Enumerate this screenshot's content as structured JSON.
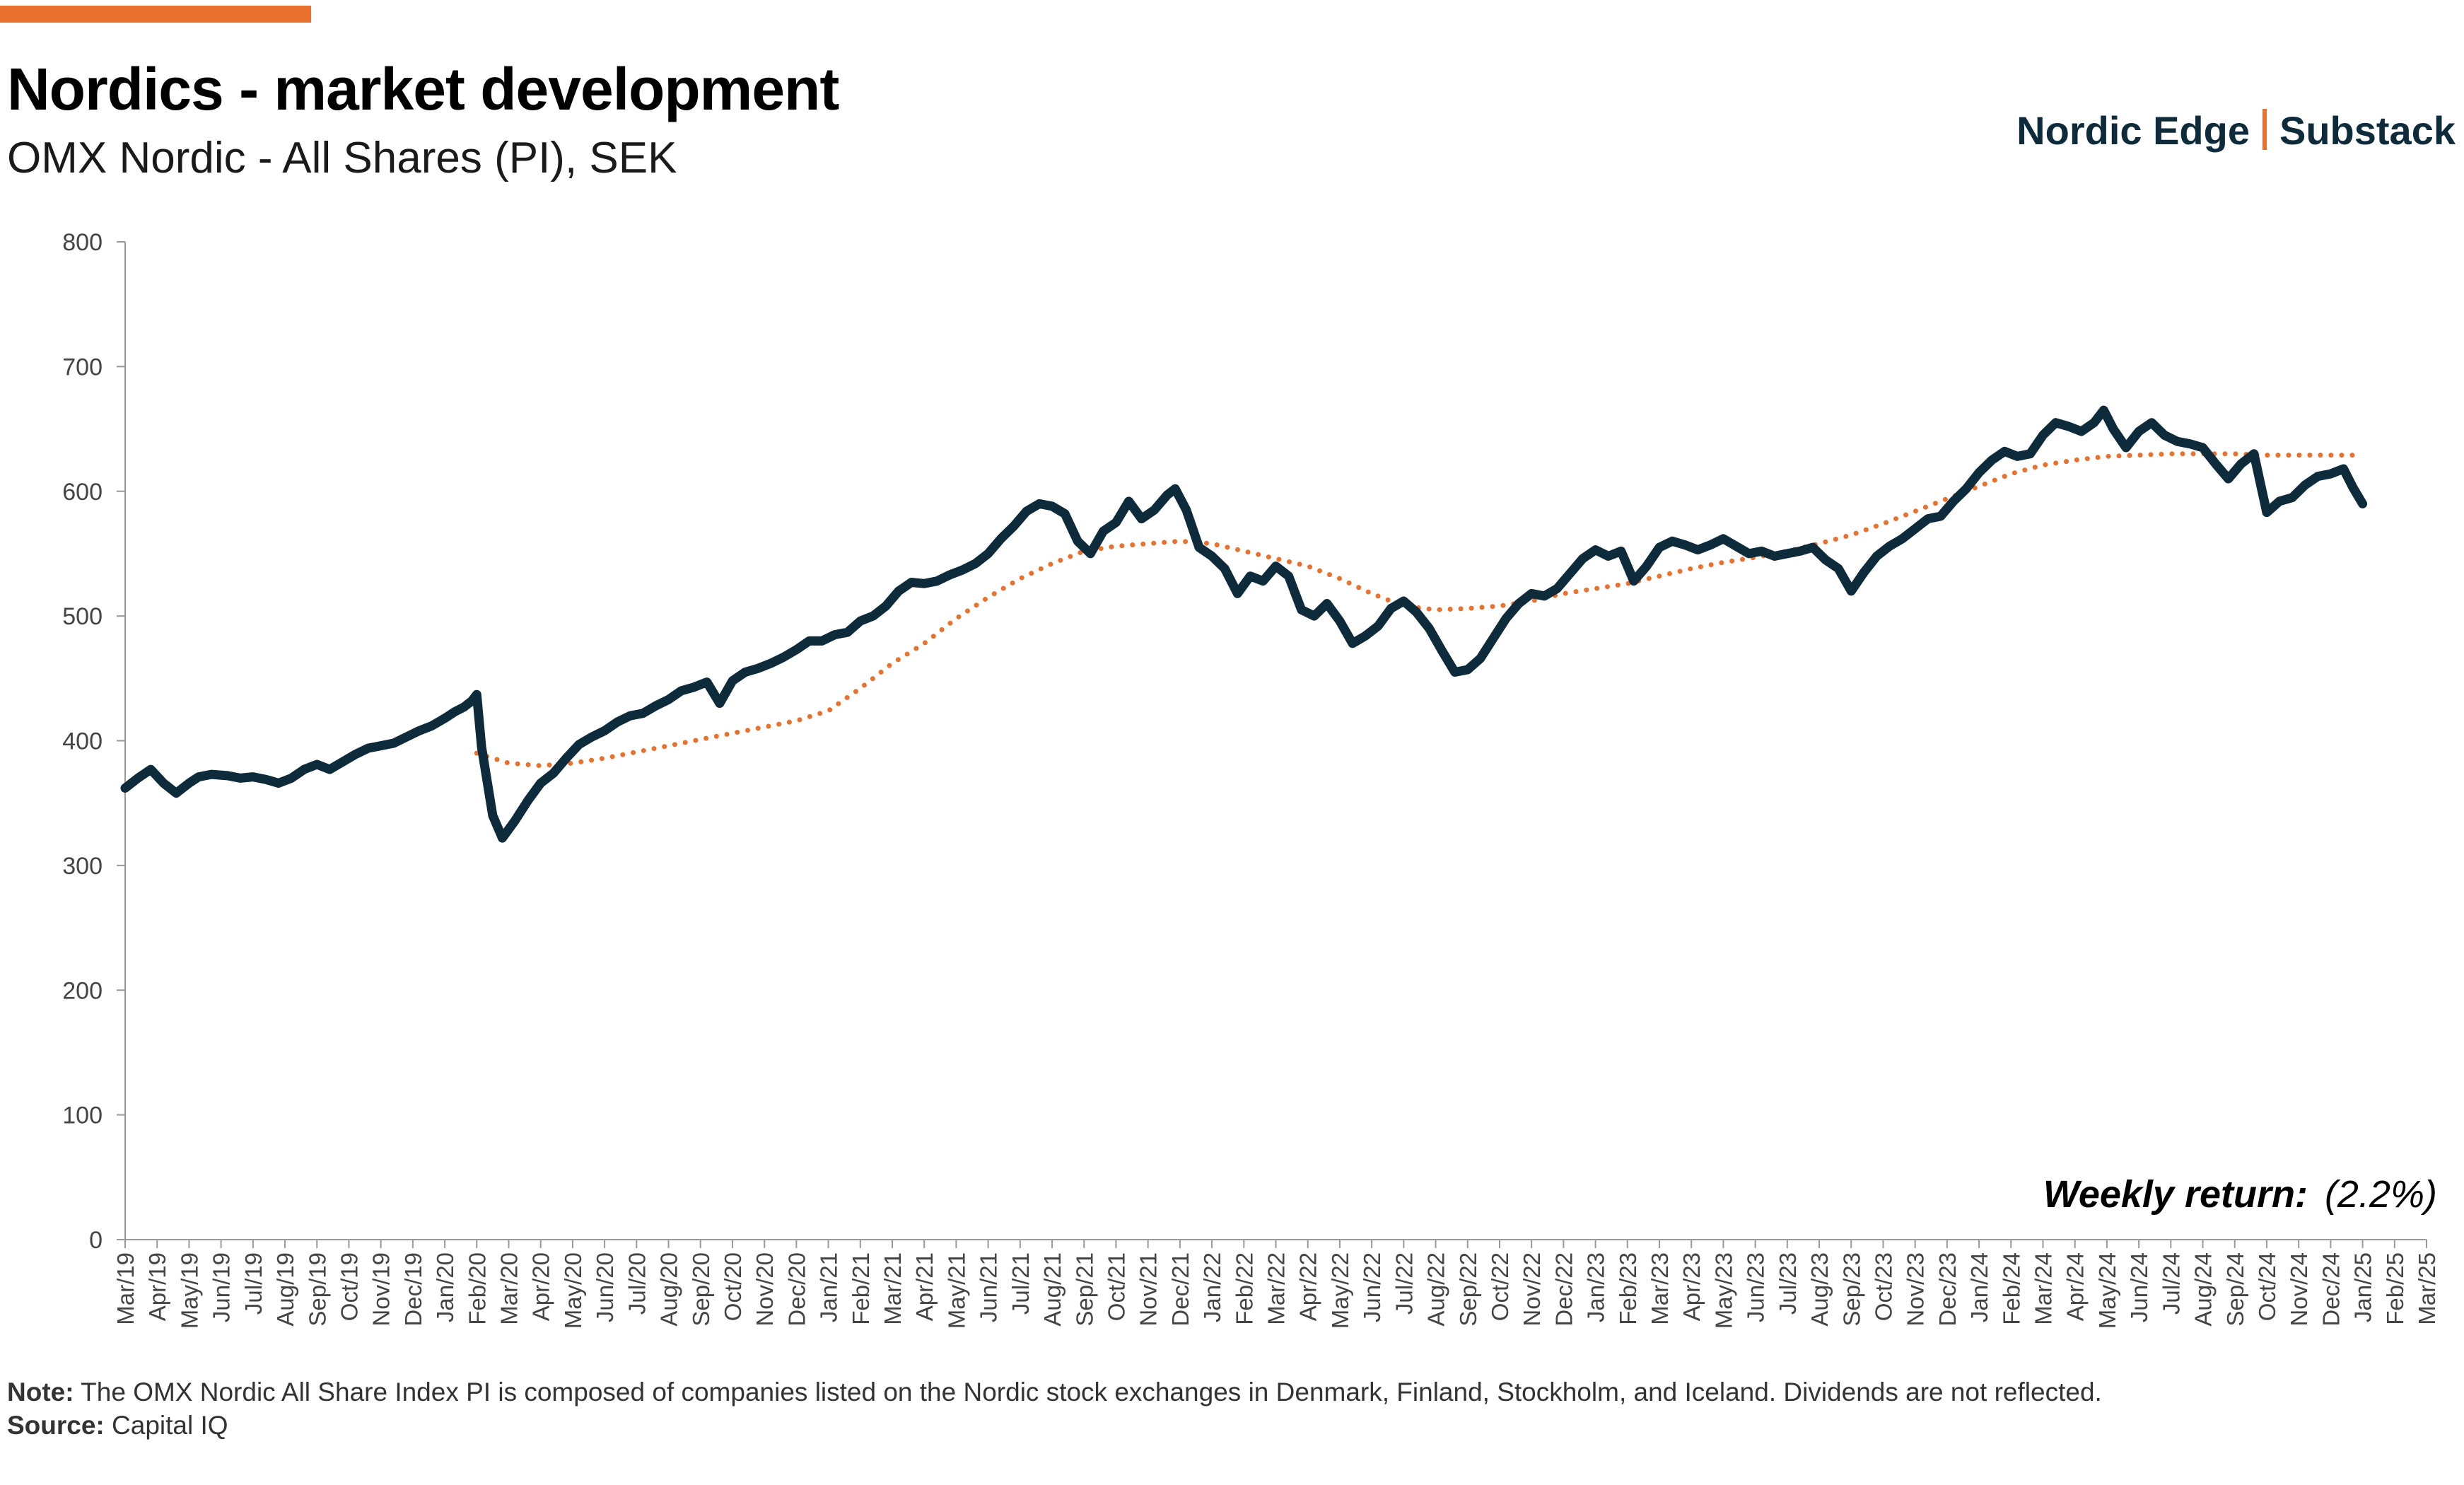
{
  "header": {
    "title": "Nordics - market development",
    "subtitle": "OMX Nordic - All Shares (PI), SEK",
    "brand_left": "Nordic Edge",
    "brand_right": "Substack"
  },
  "weekly_return": {
    "label": "Weekly return:",
    "value": "(2.2%)"
  },
  "footer": {
    "note_label": "Note:",
    "note_text": " The OMX Nordic All Share Index PI is composed of companies listed on the Nordic stock exchanges in Denmark, Finland, Stockholm, and Iceland. Dividends are not reflected.",
    "source_label": "Source:",
    "source_text": " Capital IQ"
  },
  "colors": {
    "accent": "#E8712D",
    "line": "#0E2B3C",
    "axis": "#999999",
    "tick_text": "#444444"
  },
  "chart_data": {
    "type": "line",
    "title": "Nordics - market development",
    "subtitle": "OMX Nordic - All Shares (PI), SEK",
    "ylim": [
      0,
      800
    ],
    "yticks": [
      0,
      100,
      200,
      300,
      400,
      500,
      600,
      700,
      800
    ],
    "grid": false,
    "x_tick_labels": [
      "Mar/19",
      "Apr/19",
      "May/19",
      "Jun/19",
      "Jul/19",
      "Aug/19",
      "Sep/19",
      "Oct/19",
      "Nov/19",
      "Dec/19",
      "Jan/20",
      "Feb/20",
      "Mar/20",
      "Apr/20",
      "May/20",
      "Jun/20",
      "Jul/20",
      "Aug/20",
      "Sep/20",
      "Oct/20",
      "Nov/20",
      "Dec/20",
      "Jan/21",
      "Feb/21",
      "Mar/21",
      "Apr/21",
      "May/21",
      "Jun/21",
      "Jul/21",
      "Aug/21",
      "Sep/21",
      "Oct/21",
      "Nov/21",
      "Dec/21",
      "Jan/22",
      "Feb/22",
      "Mar/22",
      "Apr/22",
      "May/22",
      "Jun/22",
      "Jul/22",
      "Aug/22",
      "Sep/22",
      "Oct/22",
      "Nov/22",
      "Dec/22",
      "Jan/23",
      "Feb/23",
      "Mar/23",
      "Apr/23",
      "May/23",
      "Jun/23",
      "Jul/23",
      "Aug/23",
      "Sep/23",
      "Oct/23",
      "Nov/23",
      "Dec/23",
      "Jan/24",
      "Feb/24",
      "Mar/24",
      "Apr/24",
      "May/24",
      "Jun/24",
      "Jul/24",
      "Aug/24",
      "Sep/24",
      "Oct/24",
      "Nov/24",
      "Dec/24",
      "Jan/25",
      "Feb/25",
      "Mar/25"
    ],
    "series": [
      {
        "style": "solid",
        "points": [
          [
            0,
            362
          ],
          [
            0.4,
            370
          ],
          [
            0.8,
            377
          ],
          [
            1.2,
            366
          ],
          [
            1.6,
            358
          ],
          [
            2.0,
            366
          ],
          [
            2.3,
            371
          ],
          [
            2.7,
            373
          ],
          [
            3.2,
            372
          ],
          [
            3.6,
            370
          ],
          [
            4.0,
            371
          ],
          [
            4.4,
            369
          ],
          [
            4.8,
            366
          ],
          [
            5.2,
            370
          ],
          [
            5.6,
            377
          ],
          [
            6.0,
            381
          ],
          [
            6.4,
            377
          ],
          [
            6.8,
            383
          ],
          [
            7.2,
            389
          ],
          [
            7.6,
            394
          ],
          [
            8.0,
            396
          ],
          [
            8.4,
            398
          ],
          [
            8.8,
            403
          ],
          [
            9.2,
            408
          ],
          [
            9.6,
            412
          ],
          [
            10.0,
            418
          ],
          [
            10.3,
            423
          ],
          [
            10.6,
            427
          ],
          [
            10.85,
            432
          ],
          [
            11.0,
            437
          ],
          [
            11.15,
            395
          ],
          [
            11.5,
            340
          ],
          [
            11.8,
            322
          ],
          [
            12.2,
            336
          ],
          [
            12.6,
            352
          ],
          [
            13.0,
            366
          ],
          [
            13.4,
            374
          ],
          [
            13.8,
            386
          ],
          [
            14.2,
            397
          ],
          [
            14.6,
            403
          ],
          [
            15.0,
            408
          ],
          [
            15.4,
            415
          ],
          [
            15.8,
            420
          ],
          [
            16.2,
            422
          ],
          [
            16.6,
            428
          ],
          [
            17.0,
            433
          ],
          [
            17.4,
            440
          ],
          [
            17.8,
            443
          ],
          [
            18.2,
            447
          ],
          [
            18.6,
            430
          ],
          [
            19.0,
            448
          ],
          [
            19.4,
            455
          ],
          [
            19.8,
            458
          ],
          [
            20.2,
            462
          ],
          [
            20.6,
            467
          ],
          [
            21.0,
            473
          ],
          [
            21.4,
            480
          ],
          [
            21.8,
            480
          ],
          [
            22.2,
            485
          ],
          [
            22.6,
            487
          ],
          [
            23.0,
            496
          ],
          [
            23.4,
            500
          ],
          [
            23.8,
            508
          ],
          [
            24.2,
            520
          ],
          [
            24.6,
            527
          ],
          [
            25.0,
            526
          ],
          [
            25.4,
            528
          ],
          [
            25.8,
            533
          ],
          [
            26.2,
            537
          ],
          [
            26.6,
            542
          ],
          [
            27.0,
            550
          ],
          [
            27.4,
            562
          ],
          [
            27.8,
            572
          ],
          [
            28.2,
            584
          ],
          [
            28.6,
            590
          ],
          [
            29.0,
            588
          ],
          [
            29.4,
            582
          ],
          [
            29.8,
            560
          ],
          [
            30.2,
            550
          ],
          [
            30.6,
            568
          ],
          [
            31.0,
            575
          ],
          [
            31.4,
            592
          ],
          [
            31.8,
            578
          ],
          [
            32.2,
            585
          ],
          [
            32.6,
            597
          ],
          [
            32.85,
            602
          ],
          [
            33.2,
            585
          ],
          [
            33.6,
            555
          ],
          [
            34.0,
            548
          ],
          [
            34.4,
            538
          ],
          [
            34.8,
            518
          ],
          [
            35.2,
            532
          ],
          [
            35.6,
            528
          ],
          [
            36.0,
            540
          ],
          [
            36.4,
            532
          ],
          [
            36.8,
            505
          ],
          [
            37.2,
            500
          ],
          [
            37.6,
            510
          ],
          [
            38.0,
            496
          ],
          [
            38.4,
            478
          ],
          [
            38.8,
            484
          ],
          [
            39.2,
            492
          ],
          [
            39.6,
            506
          ],
          [
            40.0,
            512
          ],
          [
            40.4,
            503
          ],
          [
            40.8,
            490
          ],
          [
            41.2,
            472
          ],
          [
            41.6,
            455
          ],
          [
            42.0,
            457
          ],
          [
            42.4,
            466
          ],
          [
            42.8,
            482
          ],
          [
            43.2,
            498
          ],
          [
            43.6,
            510
          ],
          [
            44.0,
            518
          ],
          [
            44.4,
            516
          ],
          [
            44.8,
            522
          ],
          [
            45.2,
            534
          ],
          [
            45.6,
            546
          ],
          [
            46.0,
            553
          ],
          [
            46.4,
            548
          ],
          [
            46.8,
            552
          ],
          [
            47.2,
            528
          ],
          [
            47.6,
            540
          ],
          [
            48.0,
            555
          ],
          [
            48.4,
            560
          ],
          [
            48.8,
            557
          ],
          [
            49.2,
            553
          ],
          [
            49.6,
            557
          ],
          [
            50.0,
            562
          ],
          [
            50.4,
            556
          ],
          [
            50.8,
            550
          ],
          [
            51.2,
            552
          ],
          [
            51.6,
            548
          ],
          [
            52.0,
            550
          ],
          [
            52.4,
            552
          ],
          [
            52.8,
            555
          ],
          [
            53.2,
            545
          ],
          [
            53.6,
            538
          ],
          [
            54.0,
            520
          ],
          [
            54.4,
            535
          ],
          [
            54.8,
            548
          ],
          [
            55.2,
            556
          ],
          [
            55.6,
            562
          ],
          [
            56.0,
            570
          ],
          [
            56.4,
            578
          ],
          [
            56.8,
            580
          ],
          [
            57.2,
            592
          ],
          [
            57.6,
            602
          ],
          [
            58.0,
            615
          ],
          [
            58.4,
            625
          ],
          [
            58.8,
            632
          ],
          [
            59.2,
            628
          ],
          [
            59.6,
            630
          ],
          [
            60.0,
            645
          ],
          [
            60.4,
            655
          ],
          [
            60.8,
            652
          ],
          [
            61.2,
            648
          ],
          [
            61.6,
            655
          ],
          [
            61.9,
            665
          ],
          [
            62.2,
            650
          ],
          [
            62.6,
            635
          ],
          [
            63.0,
            648
          ],
          [
            63.4,
            655
          ],
          [
            63.8,
            645
          ],
          [
            64.2,
            640
          ],
          [
            64.6,
            638
          ],
          [
            65.0,
            635
          ],
          [
            65.4,
            622
          ],
          [
            65.8,
            610
          ],
          [
            66.2,
            622
          ],
          [
            66.6,
            630
          ],
          [
            67.0,
            583
          ],
          [
            67.4,
            592
          ],
          [
            67.8,
            595
          ],
          [
            68.2,
            605
          ],
          [
            68.6,
            612
          ],
          [
            69.0,
            614
          ],
          [
            69.4,
            618
          ],
          [
            69.7,
            603
          ],
          [
            70.0,
            590
          ]
        ]
      },
      {
        "style": "dotted",
        "points": [
          [
            11.0,
            390
          ],
          [
            12.0,
            382
          ],
          [
            13.0,
            380
          ],
          [
            14.0,
            382
          ],
          [
            15.0,
            386
          ],
          [
            16.0,
            391
          ],
          [
            17.0,
            396
          ],
          [
            18.0,
            401
          ],
          [
            19.0,
            406
          ],
          [
            20.0,
            411
          ],
          [
            21.0,
            416
          ],
          [
            22.0,
            424
          ],
          [
            23.0,
            442
          ],
          [
            24.0,
            462
          ],
          [
            25.0,
            478
          ],
          [
            26.0,
            498
          ],
          [
            27.0,
            515
          ],
          [
            28.0,
            530
          ],
          [
            29.0,
            542
          ],
          [
            30.0,
            552
          ],
          [
            31.0,
            556
          ],
          [
            32.0,
            558
          ],
          [
            33.0,
            560
          ],
          [
            34.0,
            558
          ],
          [
            35.0,
            552
          ],
          [
            36.0,
            546
          ],
          [
            37.0,
            540
          ],
          [
            38.0,
            530
          ],
          [
            39.0,
            518
          ],
          [
            40.0,
            508
          ],
          [
            41.0,
            505
          ],
          [
            42.0,
            506
          ],
          [
            43.0,
            508
          ],
          [
            44.0,
            512
          ],
          [
            45.0,
            518
          ],
          [
            46.0,
            522
          ],
          [
            47.0,
            526
          ],
          [
            48.0,
            532
          ],
          [
            49.0,
            538
          ],
          [
            50.0,
            543
          ],
          [
            51.0,
            547
          ],
          [
            52.0,
            552
          ],
          [
            53.0,
            558
          ],
          [
            54.0,
            565
          ],
          [
            55.0,
            574
          ],
          [
            56.0,
            584
          ],
          [
            57.0,
            594
          ],
          [
            58.0,
            604
          ],
          [
            59.0,
            614
          ],
          [
            60.0,
            621
          ],
          [
            61.0,
            625
          ],
          [
            62.0,
            628
          ],
          [
            63.0,
            629
          ],
          [
            64.0,
            630
          ],
          [
            65.0,
            630
          ],
          [
            66.0,
            630
          ],
          [
            67.0,
            629
          ],
          [
            68.0,
            629
          ],
          [
            69.0,
            629
          ],
          [
            70.0,
            629
          ]
        ]
      }
    ]
  }
}
